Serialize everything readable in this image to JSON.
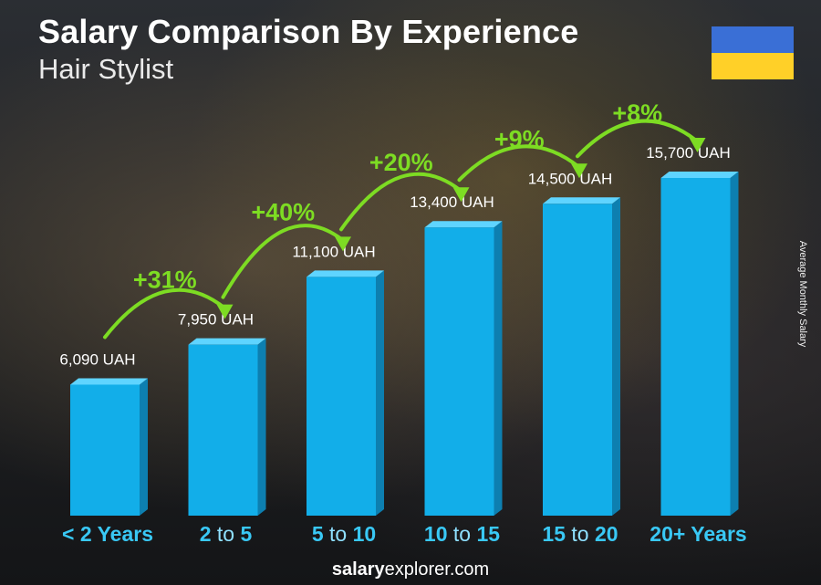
{
  "header": {
    "title": "Salary Comparison By Experience",
    "subtitle": "Hair Stylist"
  },
  "side_label": "Average Monthly Salary",
  "footer": {
    "brand_bold": "salary",
    "brand_rest": "explorer.com"
  },
  "colors": {
    "bar_front": "#12aee9",
    "bar_side": "#0d7fb0",
    "bar_top": "#5fd4ff",
    "increase": "#7ddc23",
    "category": "#39c8f5",
    "flag_top": "#3a6fd6",
    "flag_bottom": "#ffd028"
  },
  "chart_data": {
    "type": "bar",
    "categories": [
      {
        "parts": [
          "< 2 Years"
        ]
      },
      {
        "parts": [
          "2",
          " to ",
          "5"
        ]
      },
      {
        "parts": [
          "5",
          " to ",
          "10"
        ]
      },
      {
        "parts": [
          "10",
          " to ",
          "15"
        ]
      },
      {
        "parts": [
          "15",
          " to ",
          "20"
        ]
      },
      {
        "parts": [
          "20+ Years"
        ]
      }
    ],
    "values": [
      6090,
      7950,
      11100,
      13400,
      14500,
      15700
    ],
    "value_labels": [
      "6,090 UAH",
      "7,950 UAH",
      "11,100 UAH",
      "13,400 UAH",
      "14,500 UAH",
      "15,700 UAH"
    ],
    "increases": [
      "+31%",
      "+40%",
      "+20%",
      "+9%",
      "+8%"
    ],
    "ylim": [
      0,
      16000
    ]
  }
}
